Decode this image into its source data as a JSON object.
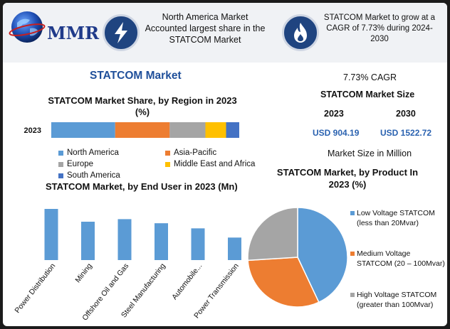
{
  "logo": {
    "text": "MMR",
    "icon": "globe-logo-icon"
  },
  "callouts": [
    {
      "text": "North America Market Accounted largest share in the STATCOM Market",
      "icon": "lightning-icon"
    },
    {
      "text": "STATCOM Market to grow at a CAGR of 7.73% during 2024-2030",
      "icon": "flame-icon"
    }
  ],
  "main_title": "STATCOM Market",
  "stats": {
    "cagr": "7.73% CAGR",
    "size_label": "STATCOM Market Size",
    "year_a": "2023",
    "year_b": "2030",
    "value_a": "USD 904.19",
    "value_b": "USD 1522.72",
    "unit_note": "Market Size in Million"
  },
  "colors": {
    "blue": "#5b9bd5",
    "orange": "#ed7d31",
    "gray": "#a5a5a5",
    "yellow": "#ffc000",
    "dark_blue": "#4472c4",
    "title_blue": "#1f4f9a"
  },
  "chart_data": [
    {
      "type": "bar",
      "orientation": "horizontal-stacked",
      "title": "STATCOM Market Share, by Region in 2023 (%)",
      "categories": [
        "2023"
      ],
      "series": [
        {
          "name": "North America",
          "values": [
            34
          ],
          "color": "#5b9bd5"
        },
        {
          "name": "Asia-Pacific",
          "values": [
            29
          ],
          "color": "#ed7d31"
        },
        {
          "name": "Europe",
          "values": [
            19
          ],
          "color": "#a5a5a5"
        },
        {
          "name": "Middle East and Africa",
          "values": [
            11
          ],
          "color": "#ffc000"
        },
        {
          "name": "South America",
          "values": [
            7
          ],
          "color": "#4472c4"
        }
      ],
      "xlim": [
        0,
        100
      ],
      "legend": "bottom"
    },
    {
      "type": "bar",
      "title": "STATCOM Market, by End User in 2023 (Mn)",
      "categories": [
        "Power Distribution",
        "Mining",
        "Offshore Oil and Gas",
        "Steel Manufacturing",
        "Automobile...",
        "Power Transmission"
      ],
      "tick_labels": [
        "Power Distribution",
        "Mining",
        "Offshore Oil and Gas",
        "Steel Manufacturing",
        "Automobile...",
        "Power Transmission"
      ],
      "values": [
        100,
        75,
        80,
        72,
        62,
        44
      ],
      "ylim": [
        0,
        100
      ],
      "color": "#5b9bd5",
      "grid": false
    },
    {
      "type": "pie",
      "title": "STATCOM Market, by Product In 2023 (%)",
      "labels": [
        "Low Voltage STATCOM (less than 20Mvar)",
        "Medium Voltage STATCOM (20 – 100Mvar)",
        "High Voltage STATCOM (greater than 100Mvar)"
      ],
      "values": [
        43,
        31,
        26
      ],
      "colors": [
        "#5b9bd5",
        "#ed7d31",
        "#a5a5a5"
      ],
      "legend": "right"
    }
  ]
}
